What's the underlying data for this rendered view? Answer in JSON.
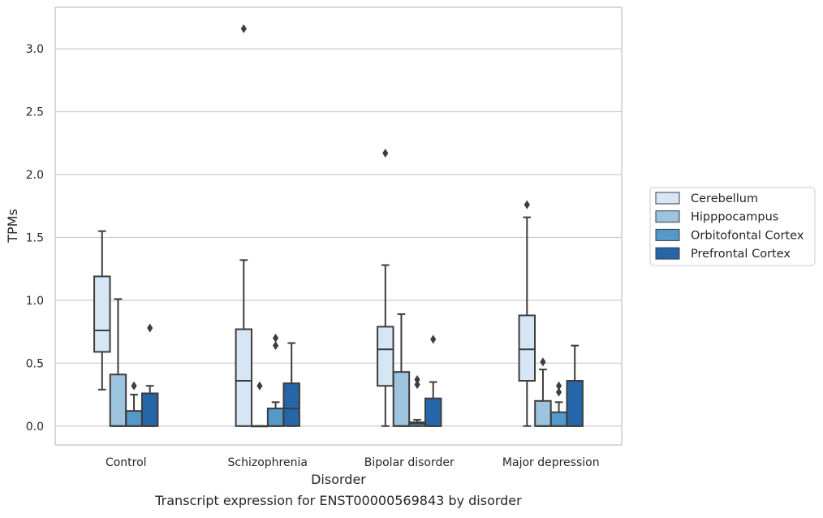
{
  "chart_data": {
    "type": "boxplot",
    "xlabel": "Disorder",
    "ylabel": "TPMs",
    "caption": "Transcript expression for ENST00000569843 by disorder",
    "ylim": [
      -0.15,
      3.33
    ],
    "yticks": [
      "0.0",
      "0.5",
      "1.0",
      "1.5",
      "2.0",
      "2.5",
      "3.0"
    ],
    "yticks_values": [
      0.0,
      0.5,
      1.0,
      1.5,
      2.0,
      2.5,
      3.0
    ],
    "grid": "horizontal",
    "legend_position": "right",
    "categories": [
      "Control",
      "Schizophrenia",
      "Bipolar disorder",
      "Major depression"
    ],
    "series": [
      {
        "name": "Cerebellum",
        "color": "#d6e6f4",
        "boxes": [
          {
            "whislo": 0.29,
            "q1": 0.59,
            "med": 0.76,
            "q3": 1.19,
            "whishi": 1.55,
            "fliers": []
          },
          {
            "whislo": 0.0,
            "q1": 0.0,
            "med": 0.36,
            "q3": 0.77,
            "whishi": 1.32,
            "fliers": [
              3.16
            ]
          },
          {
            "whislo": 0.0,
            "q1": 0.32,
            "med": 0.61,
            "q3": 0.79,
            "whishi": 1.28,
            "fliers": [
              2.17
            ]
          },
          {
            "whislo": 0.0,
            "q1": 0.36,
            "med": 0.61,
            "q3": 0.88,
            "whishi": 1.66,
            "fliers": [
              1.76
            ]
          }
        ]
      },
      {
        "name": "Hipppocampus",
        "color": "#9cc4de",
        "boxes": [
          {
            "whislo": 0.0,
            "q1": 0.0,
            "med": 0.0,
            "q3": 0.41,
            "whishi": 1.01,
            "fliers": []
          },
          {
            "whislo": 0.0,
            "q1": 0.0,
            "med": 0.0,
            "q3": 0.0,
            "whishi": 0.0,
            "fliers": [
              0.32
            ]
          },
          {
            "whislo": 0.0,
            "q1": 0.0,
            "med": 0.0,
            "q3": 0.43,
            "whishi": 0.89,
            "fliers": []
          },
          {
            "whislo": 0.0,
            "q1": 0.0,
            "med": 0.0,
            "q3": 0.2,
            "whishi": 0.45,
            "fliers": [
              0.51
            ]
          }
        ]
      },
      {
        "name": "Orbitofontal Cortex",
        "color": "#5499c7",
        "boxes": [
          {
            "whislo": 0.0,
            "q1": 0.0,
            "med": 0.0,
            "q3": 0.12,
            "whishi": 0.25,
            "fliers": [
              0.32
            ]
          },
          {
            "whislo": 0.0,
            "q1": 0.0,
            "med": 0.0,
            "q3": 0.14,
            "whishi": 0.19,
            "fliers": [
              0.64,
              0.7
            ]
          },
          {
            "whislo": 0.0,
            "q1": 0.0,
            "med": 0.02,
            "q3": 0.03,
            "whishi": 0.05,
            "fliers": [
              0.33,
              0.37
            ]
          },
          {
            "whislo": 0.0,
            "q1": 0.0,
            "med": 0.0,
            "q3": 0.11,
            "whishi": 0.19,
            "fliers": [
              0.27,
              0.32
            ]
          }
        ]
      },
      {
        "name": "Prefrontal Cortex",
        "color": "#2566a8",
        "boxes": [
          {
            "whislo": 0.0,
            "q1": 0.0,
            "med": 0.0,
            "q3": 0.26,
            "whishi": 0.32,
            "fliers": [
              0.78
            ]
          },
          {
            "whislo": 0.0,
            "q1": 0.0,
            "med": 0.14,
            "q3": 0.34,
            "whishi": 0.66,
            "fliers": []
          },
          {
            "whislo": 0.0,
            "q1": 0.0,
            "med": 0.0,
            "q3": 0.22,
            "whishi": 0.35,
            "fliers": [
              0.69
            ]
          },
          {
            "whislo": 0.0,
            "q1": 0.0,
            "med": 0.0,
            "q3": 0.36,
            "whishi": 0.64,
            "fliers": []
          }
        ]
      }
    ]
  },
  "style": {
    "edge_color": "#3d3d3d",
    "grid_color": "#cccccc",
    "frame_color": "#cccccc"
  }
}
